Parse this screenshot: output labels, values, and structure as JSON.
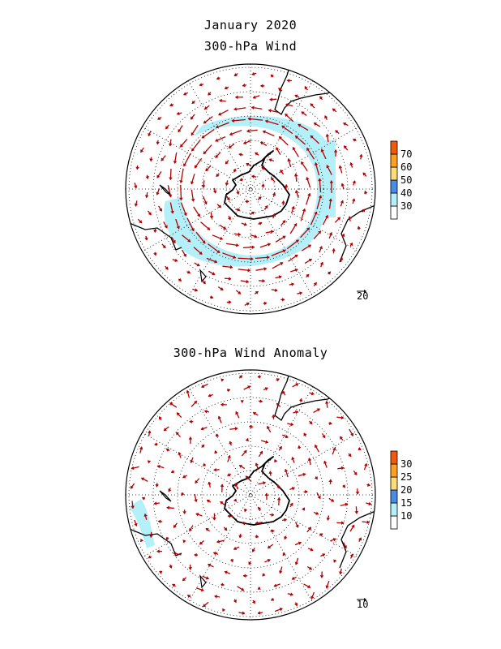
{
  "figure_title": "January 2020",
  "panels": [
    {
      "id": "top",
      "title": "300-hPa Wind",
      "colorbar": {
        "levels": [
          "30",
          "40",
          "50",
          "60",
          "70"
        ],
        "colors": [
          "#ffffff",
          "#b4f0fa",
          "#4b8ce6",
          "#ffdc78",
          "#ffa01e",
          "#f05a0a"
        ]
      },
      "reference_vector": "20",
      "vector_color": "#b40000",
      "shade_color": "#b4f0fa"
    },
    {
      "id": "bottom",
      "title": "300-hPa Wind Anomaly",
      "colorbar": {
        "levels": [
          "10",
          "15",
          "20",
          "25",
          "30"
        ],
        "colors": [
          "#ffffff",
          "#b4f0fa",
          "#4b8ce6",
          "#ffdc78",
          "#ffa01e",
          "#f05a0a"
        ]
      },
      "reference_vector": "10",
      "vector_color": "#b40000",
      "shade_color": "#b4f0fa"
    }
  ],
  "map": {
    "projection": "south polar stereographic",
    "graticule": "dotted"
  }
}
